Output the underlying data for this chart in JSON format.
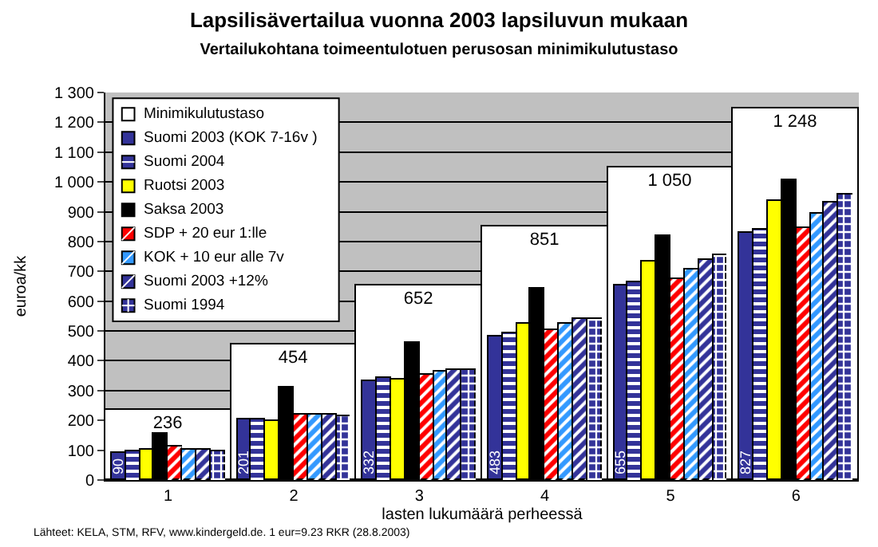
{
  "chart_data": {
    "type": "bar",
    "title": "Lapsilisävertailua vuonna 2003 lapsiluvun mukaan",
    "subtitle": "Vertailukohtana toimeentulotuen perusosan minimikulutustaso",
    "xlabel": "lasten lukumäärä perheessä",
    "ylabel": "euroa/kk",
    "categories": [
      "1",
      "2",
      "3",
      "4",
      "5",
      "6"
    ],
    "series": [
      {
        "name": "Minimikulutustaso",
        "color": "#ffffff",
        "values": [
          236,
          454,
          652,
          851,
          1050,
          1248
        ],
        "value_labels": [
          "236",
          "454",
          "652",
          "851",
          "1 050",
          "1 248"
        ]
      },
      {
        "name": "Suomi 2003 (KOK 7-16v )",
        "color": "#333399",
        "values": [
          90,
          201,
          332,
          483,
          655,
          827
        ],
        "value_labels": [
          "90",
          "201",
          "332",
          "483",
          "655",
          "827"
        ]
      },
      {
        "name": "Suomi 2004",
        "color": "#333399",
        "values": [
          95,
          205,
          340,
          490,
          663,
          841
        ]
      },
      {
        "name": "Ruotsi 2003",
        "color": "#ffff00",
        "values": [
          103,
          200,
          335,
          526,
          731,
          937
        ]
      },
      {
        "name": "Saksa 2003",
        "color": "#000000",
        "values": [
          154,
          308,
          462,
          643,
          820,
          1004
        ]
      },
      {
        "name": "SDP + 20 eur 1:lle",
        "color": "#ff0000",
        "values": [
          110,
          218,
          352,
          502,
          676,
          846
        ]
      },
      {
        "name": "KOK + 10 eur alle 7v",
        "color": "#3399ff",
        "values": [
          100,
          218,
          362,
          526,
          707,
          893
        ]
      },
      {
        "name": "Suomi 2003 +12%",
        "color": "#333399",
        "values": [
          101,
          222,
          370,
          541,
          737,
          930
        ]
      },
      {
        "name": "Suomi 1994",
        "color": "#333399",
        "values": [
          97,
          213,
          370,
          541,
          752,
          957
        ]
      }
    ],
    "ylim": [
      0,
      1300
    ],
    "yticks": [
      0,
      100,
      200,
      300,
      400,
      500,
      600,
      700,
      800,
      900,
      {
        "value": 1000,
        "label": "1 000"
      },
      {
        "value": 1100,
        "label": "1 100"
      },
      {
        "value": 1200,
        "label": "1 200"
      },
      {
        "value": 1300,
        "label": "1 300"
      }
    ],
    "grid": "y",
    "legend": "top left",
    "annotations": [
      "Lähteet: KELA, STM, RFV, www.kindergeld.de. 1 eur=9.23 RKR (28.8.2003)"
    ]
  }
}
